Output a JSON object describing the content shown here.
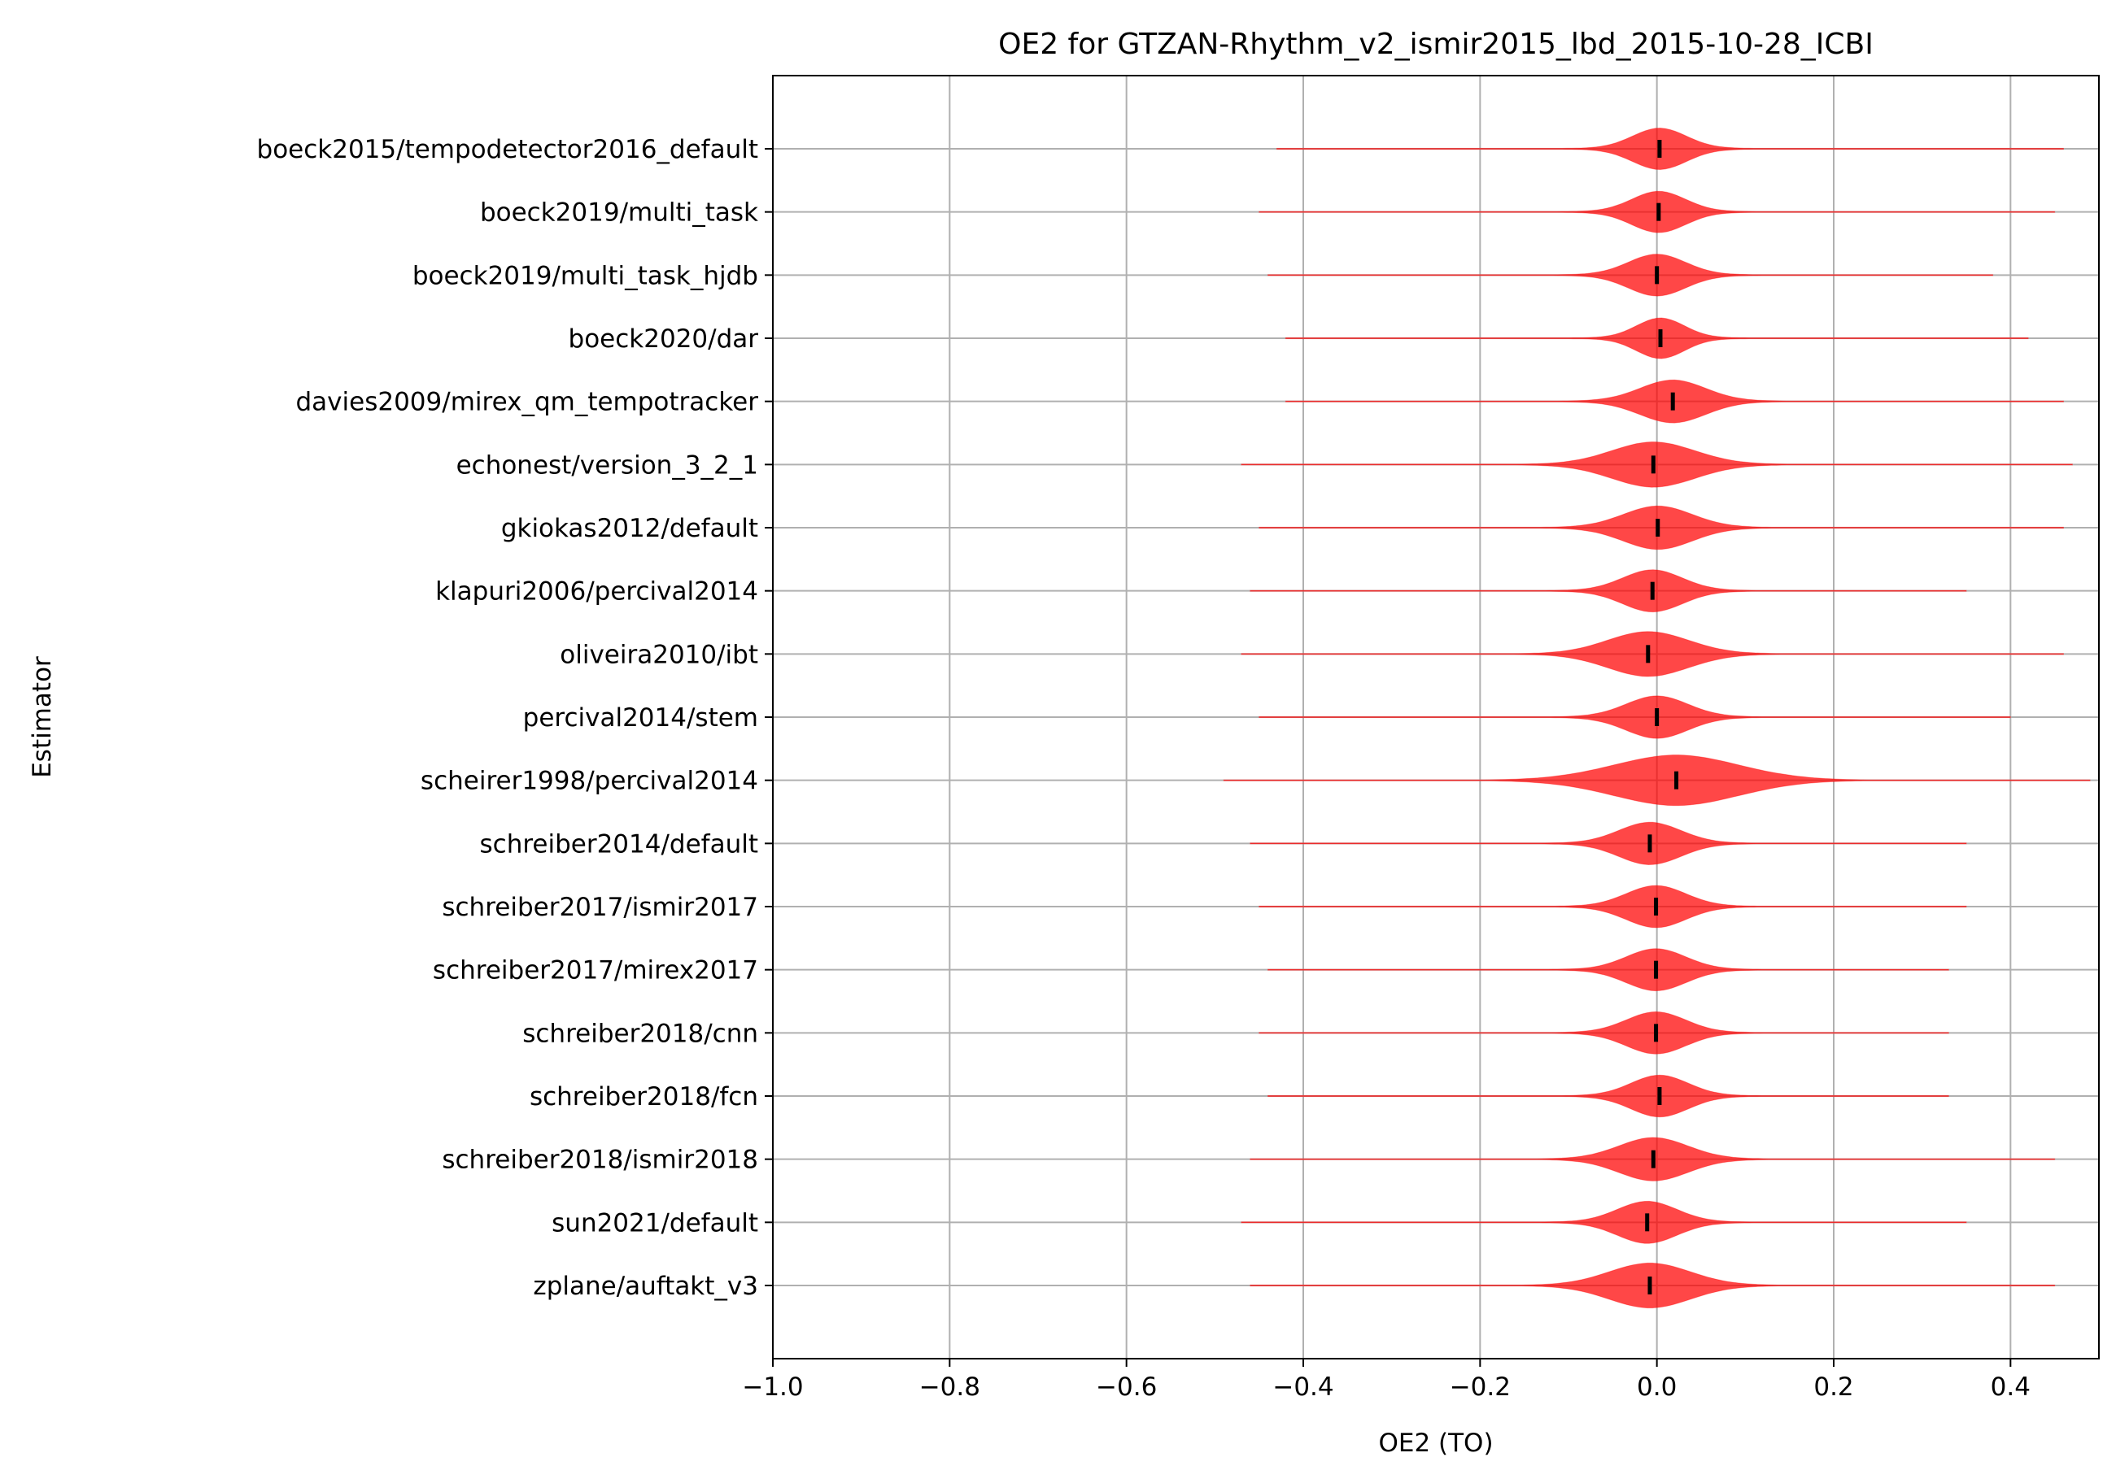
{
  "chart_data": {
    "type": "violin",
    "title": "OE2 for GTZAN-Rhythm_v2_ismir2015_lbd_2015-10-28_ICBI",
    "xlabel": "OE2 (TO)",
    "ylabel": "Estimator",
    "xlim": [
      -1.0,
      0.5
    ],
    "xticks": [
      -1.0,
      -0.8,
      -0.6,
      -0.4,
      -0.2,
      0.0,
      0.2,
      0.4
    ],
    "xtick_labels": [
      "−1.0",
      "−0.8",
      "−0.6",
      "−0.4",
      "−0.2",
      "0.0",
      "0.2",
      "0.4"
    ],
    "grid": true,
    "violin_color": "#ff0000",
    "median_color": "#000000",
    "categories": [
      "boeck2015/tempodetector2016_default",
      "boeck2019/multi_task",
      "boeck2019/multi_task_hjdb",
      "boeck2020/dar",
      "davies2009/mirex_qm_tempotracker",
      "echonest/version_3_2_1",
      "gkiokas2012/default",
      "klapuri2006/percival2014",
      "oliveira2010/ibt",
      "percival2014/stem",
      "scheirer1998/percival2014",
      "schreiber2014/default",
      "schreiber2017/ismir2017",
      "schreiber2017/mirex2017",
      "schreiber2018/cnn",
      "schreiber2018/fcn",
      "schreiber2018/ismir2018",
      "sun2021/default",
      "zplane/auftakt_v3"
    ],
    "medians": [
      0.003,
      0.002,
      0.0,
      0.004,
      0.018,
      -0.004,
      0.001,
      -0.005,
      -0.01,
      0.0,
      0.022,
      -0.008,
      -0.001,
      -0.001,
      -0.001,
      0.003,
      -0.004,
      -0.011,
      -0.008
    ],
    "body_width": [
      0.045,
      0.045,
      0.048,
      0.04,
      0.055,
      0.07,
      0.058,
      0.05,
      0.068,
      0.052,
      0.105,
      0.052,
      0.05,
      0.05,
      0.05,
      0.048,
      0.058,
      0.05,
      0.068
    ],
    "range_min": [
      -0.43,
      -0.45,
      -0.44,
      -0.42,
      -0.42,
      -0.47,
      -0.45,
      -0.46,
      -0.47,
      -0.45,
      -0.49,
      -0.46,
      -0.45,
      -0.44,
      -0.45,
      -0.44,
      -0.46,
      -0.47,
      -0.46
    ],
    "range_max": [
      0.46,
      0.45,
      0.38,
      0.42,
      0.46,
      0.47,
      0.46,
      0.35,
      0.46,
      0.4,
      0.49,
      0.35,
      0.35,
      0.33,
      0.33,
      0.33,
      0.45,
      0.35,
      0.45
    ]
  }
}
